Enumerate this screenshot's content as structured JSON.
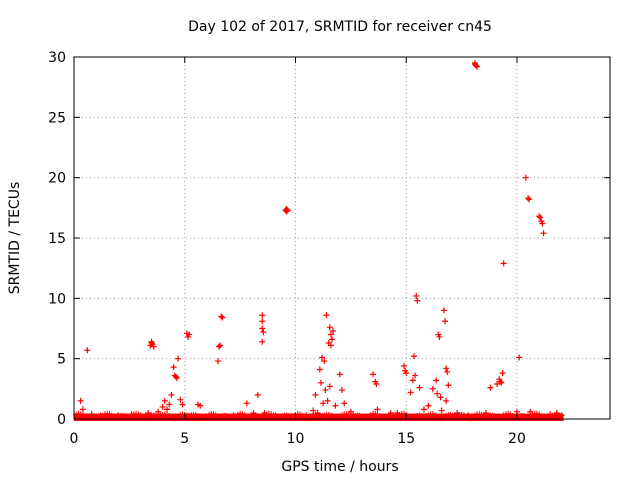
{
  "chart_data": {
    "type": "scatter",
    "title": "Day 102 of 2017, SRMTID for receiver cn45",
    "xlabel": "GPS time / hours",
    "ylabel": "SRMTID / TECUs",
    "xlim": [
      0,
      24.2
    ],
    "ylim": [
      0,
      30
    ],
    "xticks": [
      0,
      5,
      10,
      15,
      20
    ],
    "yticks": [
      0,
      5,
      10,
      15,
      20,
      25,
      30
    ],
    "grid": true,
    "marker": "+",
    "color": "#ff0000",
    "baseline_range_hours": [
      0,
      22.1
    ],
    "series": [
      {
        "name": "SRMTID",
        "points": [
          [
            0.3,
            1.5
          ],
          [
            0.4,
            0.8
          ],
          [
            0.6,
            5.7
          ],
          [
            0.8,
            0.4
          ],
          [
            1.2,
            0.3
          ],
          [
            2.0,
            0.3
          ],
          [
            2.6,
            0.4
          ],
          [
            3.0,
            0.3
          ],
          [
            3.35,
            0.5
          ],
          [
            3.45,
            6.1
          ],
          [
            3.5,
            6.3
          ],
          [
            3.55,
            6.2
          ],
          [
            3.6,
            6.0
          ],
          [
            3.5,
            6.4
          ],
          [
            3.8,
            0.6
          ],
          [
            4.0,
            1.0
          ],
          [
            4.1,
            1.5
          ],
          [
            4.2,
            0.8
          ],
          [
            4.3,
            1.2
          ],
          [
            4.4,
            2.0
          ],
          [
            4.5,
            4.3
          ],
          [
            4.55,
            3.6
          ],
          [
            4.6,
            3.5
          ],
          [
            4.65,
            3.4
          ],
          [
            4.7,
            5.0
          ],
          [
            4.8,
            1.6
          ],
          [
            4.9,
            1.2
          ],
          [
            5.1,
            7.1
          ],
          [
            5.15,
            6.8
          ],
          [
            5.2,
            7.0
          ],
          [
            5.3,
            0.3
          ],
          [
            5.6,
            1.2
          ],
          [
            5.7,
            1.1
          ],
          [
            6.5,
            4.8
          ],
          [
            6.55,
            6.0
          ],
          [
            6.6,
            6.1
          ],
          [
            6.65,
            8.5
          ],
          [
            6.7,
            8.4
          ],
          [
            7.2,
            0.3
          ],
          [
            7.8,
            1.3
          ],
          [
            8.1,
            0.5
          ],
          [
            8.3,
            2.0
          ],
          [
            8.5,
            8.6
          ],
          [
            8.5,
            8.1
          ],
          [
            8.5,
            7.5
          ],
          [
            8.55,
            7.2
          ],
          [
            8.5,
            6.4
          ],
          [
            8.6,
            0.5
          ],
          [
            9.1,
            0.3
          ],
          [
            9.55,
            17.3
          ],
          [
            9.6,
            17.4
          ],
          [
            9.65,
            17.3
          ],
          [
            9.6,
            17.2
          ],
          [
            10.5,
            0.3
          ],
          [
            10.8,
            0.7
          ],
          [
            10.9,
            2.0
          ],
          [
            11.0,
            0.5
          ],
          [
            11.1,
            4.1
          ],
          [
            11.15,
            3.0
          ],
          [
            11.2,
            5.1
          ],
          [
            11.25,
            1.3
          ],
          [
            11.3,
            4.8
          ],
          [
            11.35,
            2.4
          ],
          [
            11.4,
            8.6
          ],
          [
            11.45,
            1.5
          ],
          [
            11.5,
            6.3
          ],
          [
            11.55,
            7.6
          ],
          [
            11.6,
            7.0
          ],
          [
            11.65,
            6.6
          ],
          [
            11.7,
            7.3
          ],
          [
            11.6,
            6.1
          ],
          [
            11.55,
            2.7
          ],
          [
            11.8,
            1.1
          ],
          [
            12.0,
            3.7
          ],
          [
            12.1,
            2.4
          ],
          [
            12.2,
            1.3
          ],
          [
            12.5,
            0.6
          ],
          [
            12.6,
            0.3
          ],
          [
            13.5,
            3.7
          ],
          [
            13.6,
            3.1
          ],
          [
            13.65,
            2.9
          ],
          [
            13.7,
            0.8
          ],
          [
            14.3,
            0.5
          ],
          [
            14.6,
            0.5
          ],
          [
            14.9,
            4.4
          ],
          [
            14.95,
            4.0
          ],
          [
            15.0,
            3.8
          ],
          [
            15.2,
            2.2
          ],
          [
            15.3,
            3.2
          ],
          [
            15.35,
            5.2
          ],
          [
            15.4,
            3.6
          ],
          [
            15.45,
            10.2
          ],
          [
            15.5,
            9.8
          ],
          [
            15.6,
            2.6
          ],
          [
            15.8,
            0.8
          ],
          [
            16.0,
            1.1
          ],
          [
            16.2,
            2.5
          ],
          [
            16.35,
            3.2
          ],
          [
            16.4,
            2.1
          ],
          [
            16.45,
            7.0
          ],
          [
            16.5,
            6.8
          ],
          [
            16.55,
            1.8
          ],
          [
            16.6,
            0.7
          ],
          [
            16.7,
            9.0
          ],
          [
            16.75,
            8.1
          ],
          [
            16.8,
            4.2
          ],
          [
            16.85,
            3.9
          ],
          [
            16.9,
            2.8
          ],
          [
            16.8,
            1.5
          ],
          [
            17.3,
            0.5
          ],
          [
            17.8,
            0.3
          ],
          [
            18.1,
            29.4
          ],
          [
            18.15,
            29.3
          ],
          [
            18.2,
            29.2
          ],
          [
            18.1,
            29.5
          ],
          [
            18.6,
            0.5
          ],
          [
            18.8,
            2.6
          ],
          [
            19.1,
            2.9
          ],
          [
            19.2,
            3.3
          ],
          [
            19.25,
            3.1
          ],
          [
            19.3,
            3.0
          ],
          [
            19.35,
            3.8
          ],
          [
            19.4,
            12.9
          ],
          [
            20.0,
            0.6
          ],
          [
            20.1,
            5.1
          ],
          [
            20.4,
            20.0
          ],
          [
            20.5,
            18.3
          ],
          [
            20.55,
            18.2
          ],
          [
            20.6,
            0.6
          ],
          [
            21.0,
            16.8
          ],
          [
            21.05,
            16.7
          ],
          [
            21.1,
            16.4
          ],
          [
            21.15,
            16.2
          ],
          [
            21.2,
            15.4
          ],
          [
            21.5,
            0.4
          ],
          [
            21.8,
            0.5
          ],
          [
            22.0,
            0.3
          ]
        ]
      }
    ]
  }
}
